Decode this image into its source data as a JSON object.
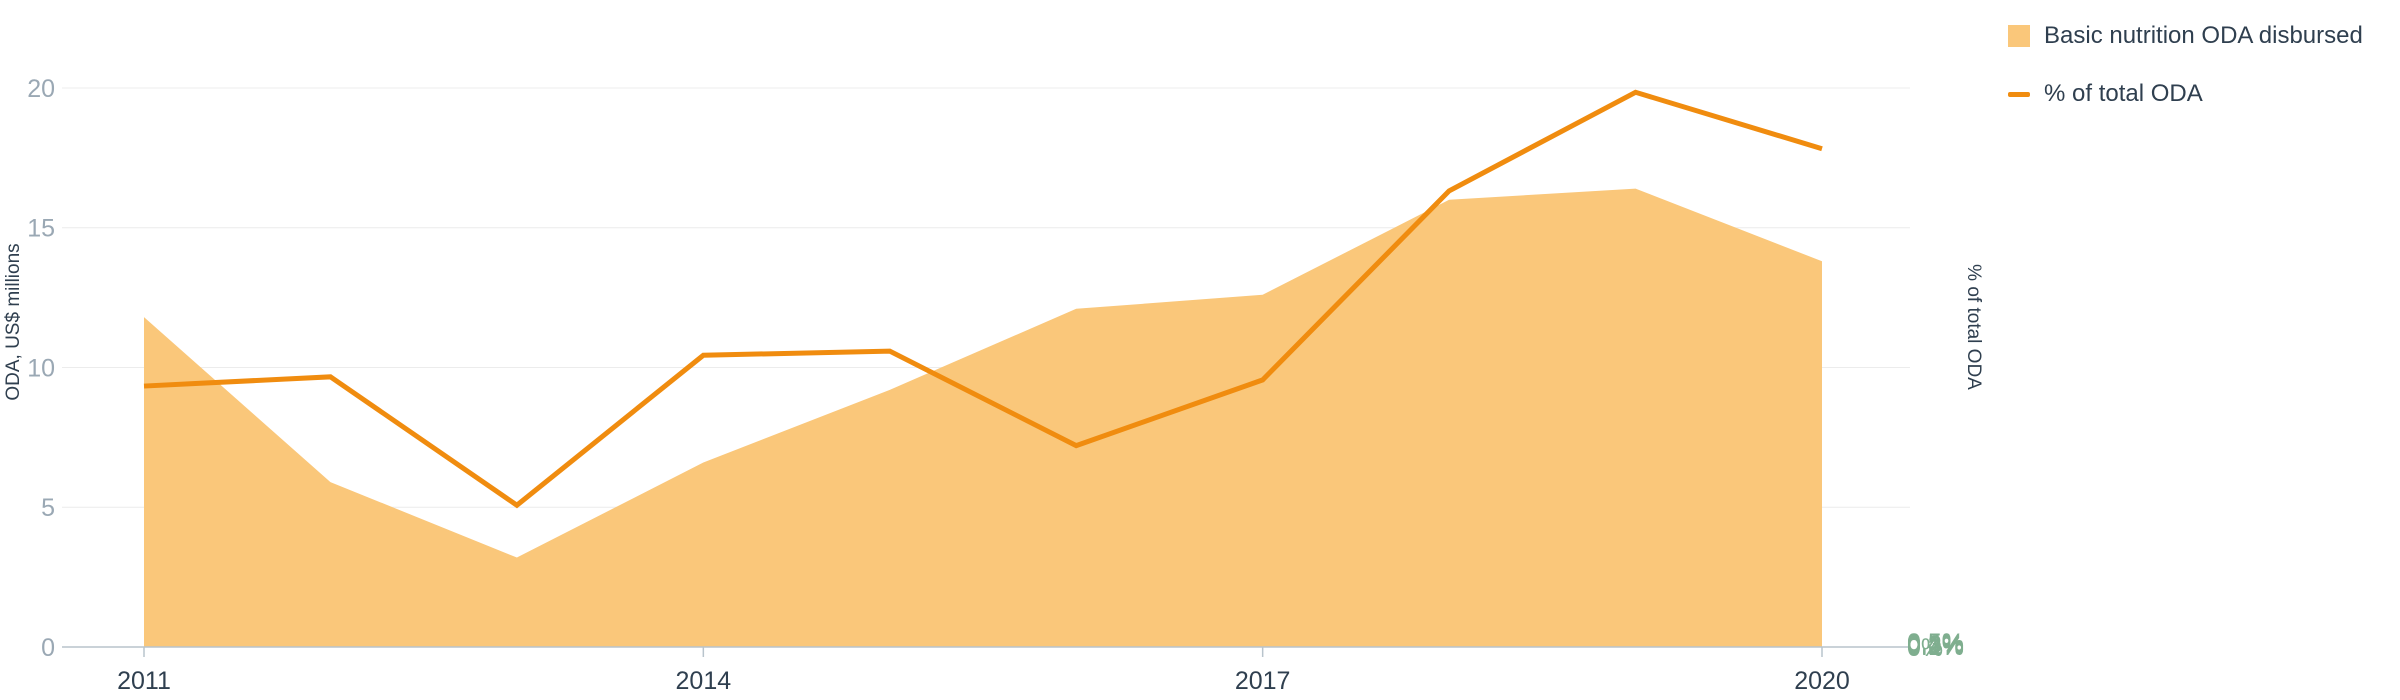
{
  "colors": {
    "area": "#fac77a",
    "line": "#f08c0f",
    "grid": "#ececec",
    "axis": "#b8c4cc",
    "left_tick": "#9aa8b4",
    "right_tick": "#7fae8f",
    "x_tick": "#2f3f4f",
    "axis_title": "#2f3f4f"
  },
  "legend": {
    "area_label": "Basic nutrition ODA disbursed",
    "line_label": "% of total ODA"
  },
  "chart_data": {
    "type": "area",
    "x_ticks": [
      "2011",
      "2014",
      "2017",
      "2020"
    ],
    "y_left": {
      "label": "ODA, US$ millions",
      "range": [
        0,
        21
      ],
      "ticks": [
        "0",
        "5",
        "10",
        "15",
        "20"
      ]
    },
    "y_right": {
      "label": "% of total ODA",
      "range": [
        0,
        0.5714
      ],
      "ticks": [
        "0%",
        "0.1%",
        "0.2%",
        "0.3%",
        "0.4%",
        "0.5%"
      ]
    },
    "grid": true,
    "legend_position": "top-right",
    "series": [
      {
        "name": "Basic nutrition ODA disbursed",
        "type": "area",
        "axis": "left",
        "x": [
          2011,
          2012,
          2013,
          2014,
          2015,
          2016,
          2017,
          2018,
          2019,
          2020
        ],
        "values": [
          11.8,
          5.9,
          3.2,
          6.6,
          9.2,
          12.1,
          12.6,
          16.0,
          16.4,
          13.8
        ]
      },
      {
        "name": "% of total ODA",
        "type": "line",
        "axis": "right",
        "x": [
          2011,
          2012,
          2013,
          2014,
          2015,
          2016,
          2017,
          2018,
          2019,
          2020
        ],
        "values": [
          0.254,
          0.263,
          0.138,
          0.284,
          0.288,
          0.196,
          0.26,
          0.444,
          0.54,
          0.485
        ]
      }
    ]
  }
}
